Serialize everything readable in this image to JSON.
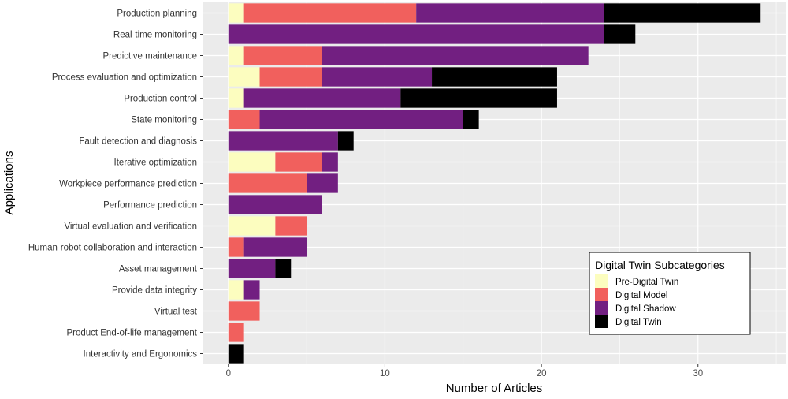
{
  "chart_data": {
    "type": "bar",
    "orientation": "horizontal",
    "stacked": true,
    "xlabel": "Number of Articles",
    "ylabel": "Applications",
    "xlim": [
      -1.6,
      35.6
    ],
    "xticks": [
      0,
      10,
      20,
      30
    ],
    "grid": true,
    "categories": [
      "Production planning",
      "Real-time monitoring",
      "Predictive maintenance",
      "Process evaluation and optimization",
      "Production control",
      "State monitoring",
      "Fault detection and diagnosis",
      "Iterative optimization",
      "Workpiece performance prediction",
      "Performance prediction",
      "Virtual evaluation and verification",
      "Human-robot collaboration and interaction",
      "Asset management",
      "Provide data integrity",
      "Virtual test",
      "Product End-of-life management",
      "Interactivity and Ergonomics"
    ],
    "series": [
      {
        "name": "Pre-Digital Twin",
        "color": "#FCFDBF",
        "values": [
          1,
          0,
          1,
          2,
          1,
          0,
          0,
          3,
          0,
          0,
          3,
          0,
          0,
          1,
          0,
          0,
          0
        ]
      },
      {
        "name": "Digital Model",
        "color": "#F1605D",
        "values": [
          11,
          0,
          5,
          4,
          0,
          2,
          0,
          3,
          5,
          0,
          2,
          1,
          0,
          0,
          2,
          1,
          0
        ]
      },
      {
        "name": "Digital Shadow",
        "color": "#721F81",
        "values": [
          12,
          24,
          17,
          7,
          10,
          13,
          7,
          1,
          2,
          6,
          0,
          4,
          3,
          1,
          0,
          0,
          0
        ]
      },
      {
        "name": "Digital Twin",
        "color": "#000000",
        "values": [
          10,
          2,
          0,
          8,
          10,
          1,
          1,
          0,
          0,
          0,
          0,
          0,
          1,
          0,
          0,
          0,
          1
        ]
      }
    ],
    "legend": {
      "title": "Digital Twin Subcategories",
      "position": "bottom-right-inside"
    },
    "panel_background": "#EBEBEB"
  }
}
